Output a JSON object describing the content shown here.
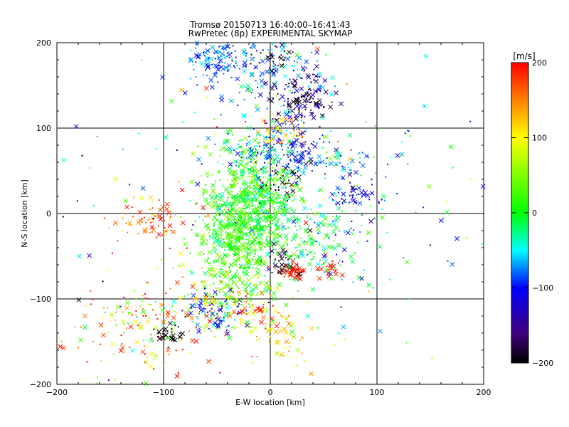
{
  "chart_data": {
    "type": "scatter",
    "title_line1": "Tromsø 20150713 16:40:00–16:41:43",
    "title_line2": "RwPretec (8p) EXPERIMENTAL SKYMAP",
    "xlabel": "E-W location [km]",
    "ylabel": "N-S location [km]",
    "xlim": [
      -200,
      200
    ],
    "ylim": [
      -200,
      200
    ],
    "x_ticks": [
      "−200",
      "−100",
      "0",
      "100",
      "200"
    ],
    "y_ticks": [
      "−200",
      "−100",
      "0",
      "100",
      "200"
    ],
    "grid_x": [
      -100,
      0,
      100
    ],
    "grid_y": [
      -100,
      0,
      100
    ],
    "colorbar": {
      "unit": "[m/s]",
      "range": [
        -200,
        200
      ],
      "ticks": [
        "200",
        "100",
        "0",
        "−100",
        "−200"
      ],
      "colors": [
        "#ff0000",
        "#ff8000",
        "#ffff00",
        "#00ff00",
        "#00ffff",
        "#0000ff",
        "#400080",
        "#000000"
      ]
    },
    "marker_types": [
      "cross",
      "dot"
    ],
    "clusters": [
      {
        "x": -30,
        "y": -20,
        "sx": 18,
        "sy": 40,
        "v": 20,
        "vs": 25,
        "n": 700
      },
      {
        "x": -10,
        "y": 10,
        "sx": 20,
        "sy": 30,
        "v": 0,
        "vs": 30,
        "n": 450
      },
      {
        "x": 0,
        "y": 160,
        "sx": 25,
        "sy": 25,
        "v": -70,
        "vs": 30,
        "n": 150
      },
      {
        "x": -50,
        "y": 180,
        "sx": 15,
        "sy": 12,
        "v": -80,
        "vs": 20,
        "n": 110
      },
      {
        "x": 30,
        "y": 135,
        "sx": 15,
        "sy": 15,
        "v": -170,
        "vs": 25,
        "n": 120
      },
      {
        "x": 20,
        "y": 80,
        "sx": 15,
        "sy": 15,
        "v": -110,
        "vs": 30,
        "n": 130
      },
      {
        "x": -10,
        "y": 70,
        "sx": 15,
        "sy": 12,
        "v": -50,
        "vs": 40,
        "n": 90
      },
      {
        "x": 10,
        "y": 95,
        "sx": 10,
        "sy": 8,
        "v": 120,
        "vs": 20,
        "n": 40
      },
      {
        "x": 80,
        "y": 22,
        "sx": 12,
        "sy": 10,
        "v": -110,
        "vs": 25,
        "n": 50
      },
      {
        "x": 60,
        "y": 60,
        "sx": 15,
        "sy": 8,
        "v": -60,
        "vs": 30,
        "n": 40
      },
      {
        "x": -110,
        "y": -10,
        "sx": 15,
        "sy": 12,
        "v": 160,
        "vs": 30,
        "n": 70
      },
      {
        "x": -110,
        "y": -130,
        "sx": 40,
        "sy": 25,
        "v": 120,
        "vs": 80,
        "n": 200
      },
      {
        "x": -95,
        "y": -140,
        "sx": 8,
        "sy": 8,
        "v": -200,
        "vs": 5,
        "n": 30
      },
      {
        "x": -50,
        "y": -115,
        "sx": 15,
        "sy": 12,
        "v": -100,
        "vs": 40,
        "n": 80
      },
      {
        "x": -10,
        "y": -110,
        "sx": 12,
        "sy": 12,
        "v": 160,
        "vs": 30,
        "n": 40
      },
      {
        "x": 22,
        "y": -68,
        "sx": 5,
        "sy": 5,
        "v": 195,
        "vs": 8,
        "n": 60
      },
      {
        "x": 10,
        "y": -55,
        "sx": 8,
        "sy": 8,
        "v": -185,
        "vs": 15,
        "n": 30
      },
      {
        "x": 55,
        "y": -65,
        "sx": 6,
        "sy": 6,
        "v": 190,
        "vs": 10,
        "n": 25
      },
      {
        "x": 40,
        "y": -40,
        "sx": 20,
        "sy": 20,
        "v": -10,
        "vs": 40,
        "n": 100
      },
      {
        "x": 10,
        "y": -140,
        "sx": 20,
        "sy": 20,
        "v": 110,
        "vs": 30,
        "n": 70
      },
      {
        "x": -40,
        "y": -90,
        "sx": 25,
        "sy": 20,
        "v": 60,
        "vs": 50,
        "n": 120
      },
      {
        "x": 60,
        "y": -10,
        "sx": 20,
        "sy": 20,
        "v": -50,
        "vs": 40,
        "n": 50
      },
      {
        "x": 10,
        "y": 40,
        "sx": 10,
        "sy": 10,
        "v": -200,
        "vs": 10,
        "n": 30
      },
      {
        "x": 0,
        "y": 0,
        "sx": 100,
        "sy": 100,
        "v": 0,
        "vs": 120,
        "n": 200
      },
      {
        "x": 110,
        "y": 60,
        "sx": 40,
        "sy": 50,
        "v": -50,
        "vs": 60,
        "n": 40
      },
      {
        "x": 0,
        "y": 185,
        "sx": 12,
        "sy": 8,
        "v": -200,
        "vs": 10,
        "n": 25
      }
    ]
  }
}
